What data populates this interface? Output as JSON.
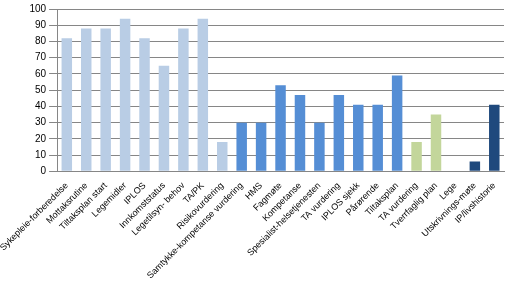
{
  "chart_data": {
    "type": "bar",
    "categories": [
      "Sykepleie-forberedelse",
      "Mottaksrutine",
      "Tiltaksplan start",
      "Legemidler",
      "IPLOS",
      "Innkomststatus",
      "Legetilsyn- behov",
      "TA/PK",
      "Risikovurdering",
      "Samtykke-kompetanse vurdering",
      "HMS",
      "Fagmøte",
      "Kompetanse",
      "Spesialist-helsetjenesten",
      "TA vurdering",
      "IPLOS sjekk",
      "Pårørende",
      "Tiltaksplan",
      "TA vurdering",
      "Tverrfaglig plan",
      "Lege",
      "Utskrivnings-møte",
      "IP/livshistorie"
    ],
    "values": [
      82,
      88,
      88,
      94,
      82,
      65,
      88,
      94,
      18,
      30,
      30,
      53,
      47,
      30,
      47,
      41,
      41,
      59,
      18,
      35,
      0,
      6,
      41
    ],
    "colors": [
      "#b9cde5",
      "#b9cde5",
      "#b9cde5",
      "#b9cde5",
      "#b9cde5",
      "#b9cde5",
      "#b9cde5",
      "#b9cde5",
      "#b9cde5",
      "#558ed5",
      "#558ed5",
      "#558ed5",
      "#558ed5",
      "#558ed5",
      "#558ed5",
      "#558ed5",
      "#558ed5",
      "#558ed5",
      "#c3d69b",
      "#c3d69b",
      "#1f497d",
      "#1f497d",
      "#1f497d"
    ],
    "ylim": [
      0,
      100
    ],
    "yticks": [
      0,
      10,
      20,
      30,
      40,
      50,
      60,
      70,
      80,
      90,
      100
    ],
    "grid": true
  }
}
